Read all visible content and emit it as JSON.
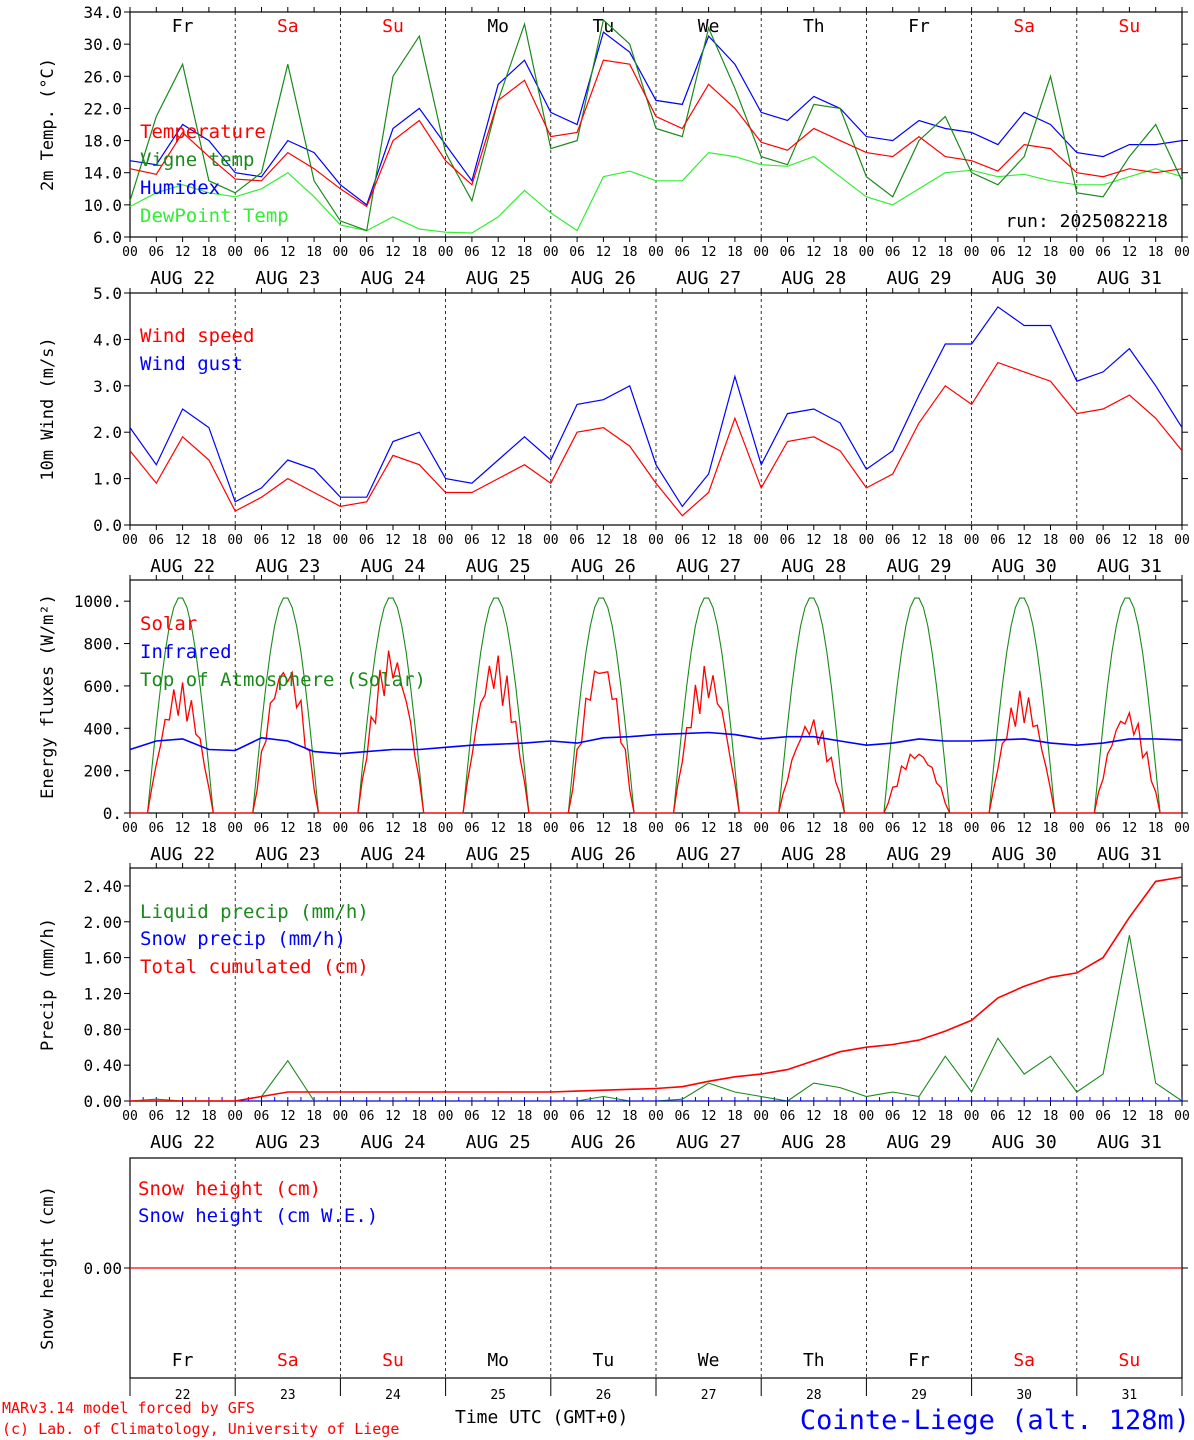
{
  "colors": {
    "red": "#ff0000",
    "blue": "#0000ff",
    "green": "#1a8a1a",
    "lightgreen": "#33ee33",
    "black": "#000000",
    "grid": "#000000"
  },
  "footer": {
    "model_line": "MARv3.14 model forced by GFS",
    "copyright_line": "(c) Lab. of Climatology, University of Liege",
    "time_axis_label": "Time UTC (GMT+0)",
    "location": "Cointe-Liege (alt. 128m)"
  },
  "chart_data": [
    {
      "type": "line",
      "ylabel": "2m Temp. (°C)",
      "ylim": [
        6.0,
        34.0
      ],
      "yticks": [
        "6.0",
        "10.0",
        "14.0",
        "18.0",
        "22.0",
        "26.0",
        "30.0",
        "34.0"
      ],
      "day_names": [
        "Fr",
        "Sa",
        "Su",
        "Mo",
        "Tu",
        "We",
        "Th",
        "Fr",
        "Sa",
        "Su"
      ],
      "day_name_colors": [
        "black",
        "red",
        "red",
        "black",
        "black",
        "black",
        "black",
        "black",
        "red",
        "red"
      ],
      "date_labels": [
        "AUG 22",
        "AUG 23",
        "AUG 24",
        "AUG 25",
        "AUG 26",
        "AUG 27",
        "AUG 28",
        "AUG 29",
        "AUG 30",
        "AUG 31"
      ],
      "hour_ticks": [
        "00",
        "06",
        "12",
        "18"
      ],
      "annotation": "run: 2025082218",
      "x_hours": [
        0,
        6,
        12,
        18,
        24,
        30,
        36,
        42,
        48,
        54,
        60,
        66,
        72,
        78,
        84,
        90,
        96,
        102,
        108,
        114,
        120,
        126,
        132,
        138,
        144,
        150,
        156,
        162,
        168,
        174,
        180,
        186,
        192,
        198,
        204,
        210,
        216,
        222,
        228,
        234,
        240
      ],
      "series": [
        {
          "name": "Temperature",
          "color": "red",
          "values": [
            14.5,
            13.8,
            19.0,
            16.0,
            13.2,
            13.0,
            16.5,
            14.5,
            12.0,
            9.8,
            18.0,
            20.5,
            15.5,
            12.5,
            23.0,
            25.5,
            18.5,
            19.0,
            28.0,
            27.5,
            21.0,
            19.5,
            25.0,
            22.0,
            17.8,
            16.8,
            19.5,
            18.0,
            16.5,
            16.0,
            18.5,
            16.0,
            15.5,
            14.2,
            17.5,
            17.0,
            14.0,
            13.5,
            14.5,
            14.0,
            14.5
          ]
        },
        {
          "name": "Vigne temp",
          "color": "green",
          "values": [
            10.5,
            21.0,
            27.5,
            13.0,
            11.5,
            14.0,
            27.5,
            13.0,
            8.0,
            6.8,
            26.0,
            31.0,
            16.5,
            10.5,
            23.0,
            32.5,
            17.0,
            18.0,
            33.0,
            30.0,
            19.5,
            18.5,
            32.0,
            24.5,
            16.0,
            15.0,
            22.5,
            22.0,
            13.5,
            11.0,
            18.0,
            21.0,
            14.0,
            12.5,
            16.0,
            26.0,
            11.5,
            11.0,
            16.0,
            20.0,
            13.0
          ]
        },
        {
          "name": "Humidex",
          "color": "blue",
          "values": [
            15.5,
            15.0,
            20.0,
            18.0,
            14.0,
            13.5,
            18.0,
            16.5,
            12.5,
            10.0,
            19.5,
            22.0,
            17.5,
            13.0,
            25.0,
            28.0,
            21.5,
            20.0,
            31.5,
            29.0,
            23.0,
            22.5,
            31.0,
            27.5,
            21.5,
            20.5,
            23.5,
            22.0,
            18.5,
            18.0,
            20.5,
            19.5,
            19.0,
            17.5,
            21.5,
            20.0,
            16.5,
            16.0,
            17.5,
            17.5,
            18.0
          ]
        },
        {
          "name": "DewPoint Temp",
          "color": "lightgreen",
          "values": [
            9.8,
            11.5,
            12.5,
            11.5,
            11.0,
            12.0,
            14.0,
            11.0,
            7.5,
            6.8,
            8.5,
            7.0,
            6.6,
            6.5,
            8.5,
            11.8,
            9.0,
            6.8,
            13.5,
            14.2,
            13.0,
            13.0,
            16.5,
            16.0,
            15.0,
            14.8,
            16.0,
            13.5,
            11.0,
            10.0,
            12.0,
            14.0,
            14.3,
            13.5,
            13.8,
            13.0,
            12.5,
            12.5,
            13.5,
            14.5,
            13.5
          ]
        }
      ]
    },
    {
      "type": "line",
      "ylabel": "10m Wind (m/s)",
      "ylim": [
        0.0,
        5.0
      ],
      "yticks": [
        "0.0",
        "1.0",
        "2.0",
        "3.0",
        "4.0",
        "5.0"
      ],
      "date_labels": [
        "AUG 22",
        "AUG 23",
        "AUG 24",
        "AUG 25",
        "AUG 26",
        "AUG 27",
        "AUG 28",
        "AUG 29",
        "AUG 30",
        "AUG 31"
      ],
      "hour_ticks": [
        "00",
        "06",
        "12",
        "18"
      ],
      "x_hours": [
        0,
        6,
        12,
        18,
        24,
        30,
        36,
        42,
        48,
        54,
        60,
        66,
        72,
        78,
        84,
        90,
        96,
        102,
        108,
        114,
        120,
        126,
        132,
        138,
        144,
        150,
        156,
        162,
        168,
        174,
        180,
        186,
        192,
        198,
        204,
        210,
        216,
        222,
        228,
        234,
        240
      ],
      "series": [
        {
          "name": "Wind speed",
          "color": "red",
          "values": [
            1.6,
            0.9,
            1.9,
            1.4,
            0.3,
            0.6,
            1.0,
            0.7,
            0.4,
            0.5,
            1.5,
            1.3,
            0.7,
            0.7,
            1.0,
            1.3,
            0.9,
            2.0,
            2.1,
            1.7,
            0.9,
            0.2,
            0.7,
            2.3,
            0.8,
            1.8,
            1.9,
            1.6,
            0.8,
            1.1,
            2.2,
            3.0,
            2.6,
            3.5,
            3.3,
            3.1,
            2.4,
            2.5,
            2.8,
            2.3,
            1.6
          ]
        },
        {
          "name": "Wind gust",
          "color": "blue",
          "values": [
            2.1,
            1.3,
            2.5,
            2.1,
            0.5,
            0.8,
            1.4,
            1.2,
            0.6,
            0.6,
            1.8,
            2.0,
            1.0,
            0.9,
            1.4,
            1.9,
            1.4,
            2.6,
            2.7,
            3.0,
            1.3,
            0.4,
            1.1,
            3.2,
            1.3,
            2.4,
            2.5,
            2.2,
            1.2,
            1.6,
            2.8,
            3.9,
            3.9,
            4.7,
            4.3,
            4.3,
            3.1,
            3.3,
            3.8,
            3.0,
            2.1
          ]
        }
      ]
    },
    {
      "type": "line",
      "ylabel": "Energy fluxes (W/m²)",
      "ylim": [
        0,
        1100
      ],
      "yticks": [
        "0.",
        "200.",
        "400.",
        "600.",
        "800.",
        "1000."
      ],
      "date_labels": [
        "AUG 22",
        "AUG 23",
        "AUG 24",
        "AUG 25",
        "AUG 26",
        "AUG 27",
        "AUG 28",
        "AUG 29",
        "AUG 30",
        "AUG 31"
      ],
      "hour_ticks": [
        "00",
        "06",
        "12",
        "18"
      ],
      "day_peaks_solar": [
        620,
        720,
        780,
        750,
        740,
        700,
        450,
        300,
        580,
        490
      ],
      "day_peak_toa": 1020,
      "infrared_hourly6": [
        300,
        340,
        350,
        300,
        295,
        355,
        340,
        290,
        280,
        290,
        300,
        300,
        310,
        320,
        325,
        330,
        340,
        330,
        355,
        360,
        370,
        375,
        380,
        370,
        350,
        360,
        360,
        340,
        320,
        330,
        350,
        340,
        340,
        345,
        350,
        330,
        320,
        330,
        350,
        350,
        345
      ],
      "series": [
        {
          "name": "Solar",
          "color": "red"
        },
        {
          "name": "Infrared",
          "color": "blue"
        },
        {
          "name": "Top of Atmosphere (Solar)",
          "color": "green"
        }
      ]
    },
    {
      "type": "line",
      "ylabel": "Precip (mm/h)",
      "ylim": [
        0.0,
        2.6
      ],
      "yticks": [
        "0.00",
        "0.40",
        "0.80",
        "1.20",
        "1.60",
        "2.00",
        "2.40"
      ],
      "date_labels": [
        "AUG 22",
        "AUG 23",
        "AUG 24",
        "AUG 25",
        "AUG 26",
        "AUG 27",
        "AUG 28",
        "AUG 29",
        "AUG 30",
        "AUG 31"
      ],
      "hour_ticks": [
        "00",
        "06",
        "12",
        "18"
      ],
      "x_hours": [
        0,
        6,
        12,
        18,
        24,
        30,
        36,
        42,
        48,
        54,
        60,
        66,
        72,
        78,
        84,
        90,
        96,
        102,
        108,
        114,
        120,
        126,
        132,
        138,
        144,
        150,
        156,
        162,
        168,
        174,
        180,
        186,
        192,
        198,
        204,
        210,
        216,
        222,
        228,
        234,
        240
      ],
      "series": [
        {
          "name": "Liquid precip (mm/h)",
          "color": "green",
          "values": [
            0.0,
            0.02,
            0.0,
            0.0,
            0.0,
            0.05,
            0.45,
            0.0,
            0.0,
            0.0,
            0.0,
            0.0,
            0.0,
            0.0,
            0.0,
            0.0,
            0.0,
            0.0,
            0.05,
            0.0,
            0.0,
            0.02,
            0.2,
            0.1,
            0.05,
            0.0,
            0.2,
            0.15,
            0.05,
            0.1,
            0.05,
            0.5,
            0.1,
            0.7,
            0.3,
            0.5,
            0.1,
            0.3,
            1.85,
            0.2,
            0.0
          ]
        },
        {
          "name": "Snow precip (mm/h)",
          "color": "blue",
          "values": [
            0,
            0,
            0,
            0,
            0,
            0,
            0,
            0,
            0,
            0,
            0,
            0,
            0,
            0,
            0,
            0,
            0,
            0,
            0,
            0,
            0,
            0,
            0,
            0,
            0,
            0,
            0,
            0,
            0,
            0,
            0,
            0,
            0,
            0,
            0,
            0,
            0,
            0,
            0,
            0,
            0
          ]
        },
        {
          "name": "Total cumulated (cm)",
          "color": "red",
          "values": [
            0.0,
            0.0,
            0.0,
            0.0,
            0.0,
            0.05,
            0.1,
            0.1,
            0.1,
            0.1,
            0.1,
            0.1,
            0.1,
            0.1,
            0.1,
            0.1,
            0.1,
            0.11,
            0.12,
            0.13,
            0.14,
            0.16,
            0.22,
            0.27,
            0.3,
            0.35,
            0.45,
            0.55,
            0.6,
            0.63,
            0.68,
            0.78,
            0.9,
            1.15,
            1.28,
            1.38,
            1.43,
            1.6,
            2.05,
            2.45,
            2.5
          ]
        }
      ]
    },
    {
      "type": "line",
      "ylabel": "Snow height (cm)",
      "ylim": [
        -1.0,
        1.0
      ],
      "yticks": [
        "0.00"
      ],
      "day_names": [
        "Fr",
        "Sa",
        "Su",
        "Mo",
        "Tu",
        "We",
        "Th",
        "Fr",
        "Sa",
        "Su"
      ],
      "day_name_colors": [
        "black",
        "red",
        "red",
        "black",
        "black",
        "black",
        "black",
        "black",
        "red",
        "red"
      ],
      "day_numbers": [
        "22",
        "23",
        "24",
        "25",
        "26",
        "27",
        "28",
        "29",
        "30",
        "31"
      ],
      "series": [
        {
          "name": "Snow height (cm)",
          "color": "red",
          "values": [
            0.0,
            0.0
          ]
        },
        {
          "name": "Snow height (cm W.E.)",
          "color": "blue",
          "values": []
        }
      ]
    }
  ]
}
